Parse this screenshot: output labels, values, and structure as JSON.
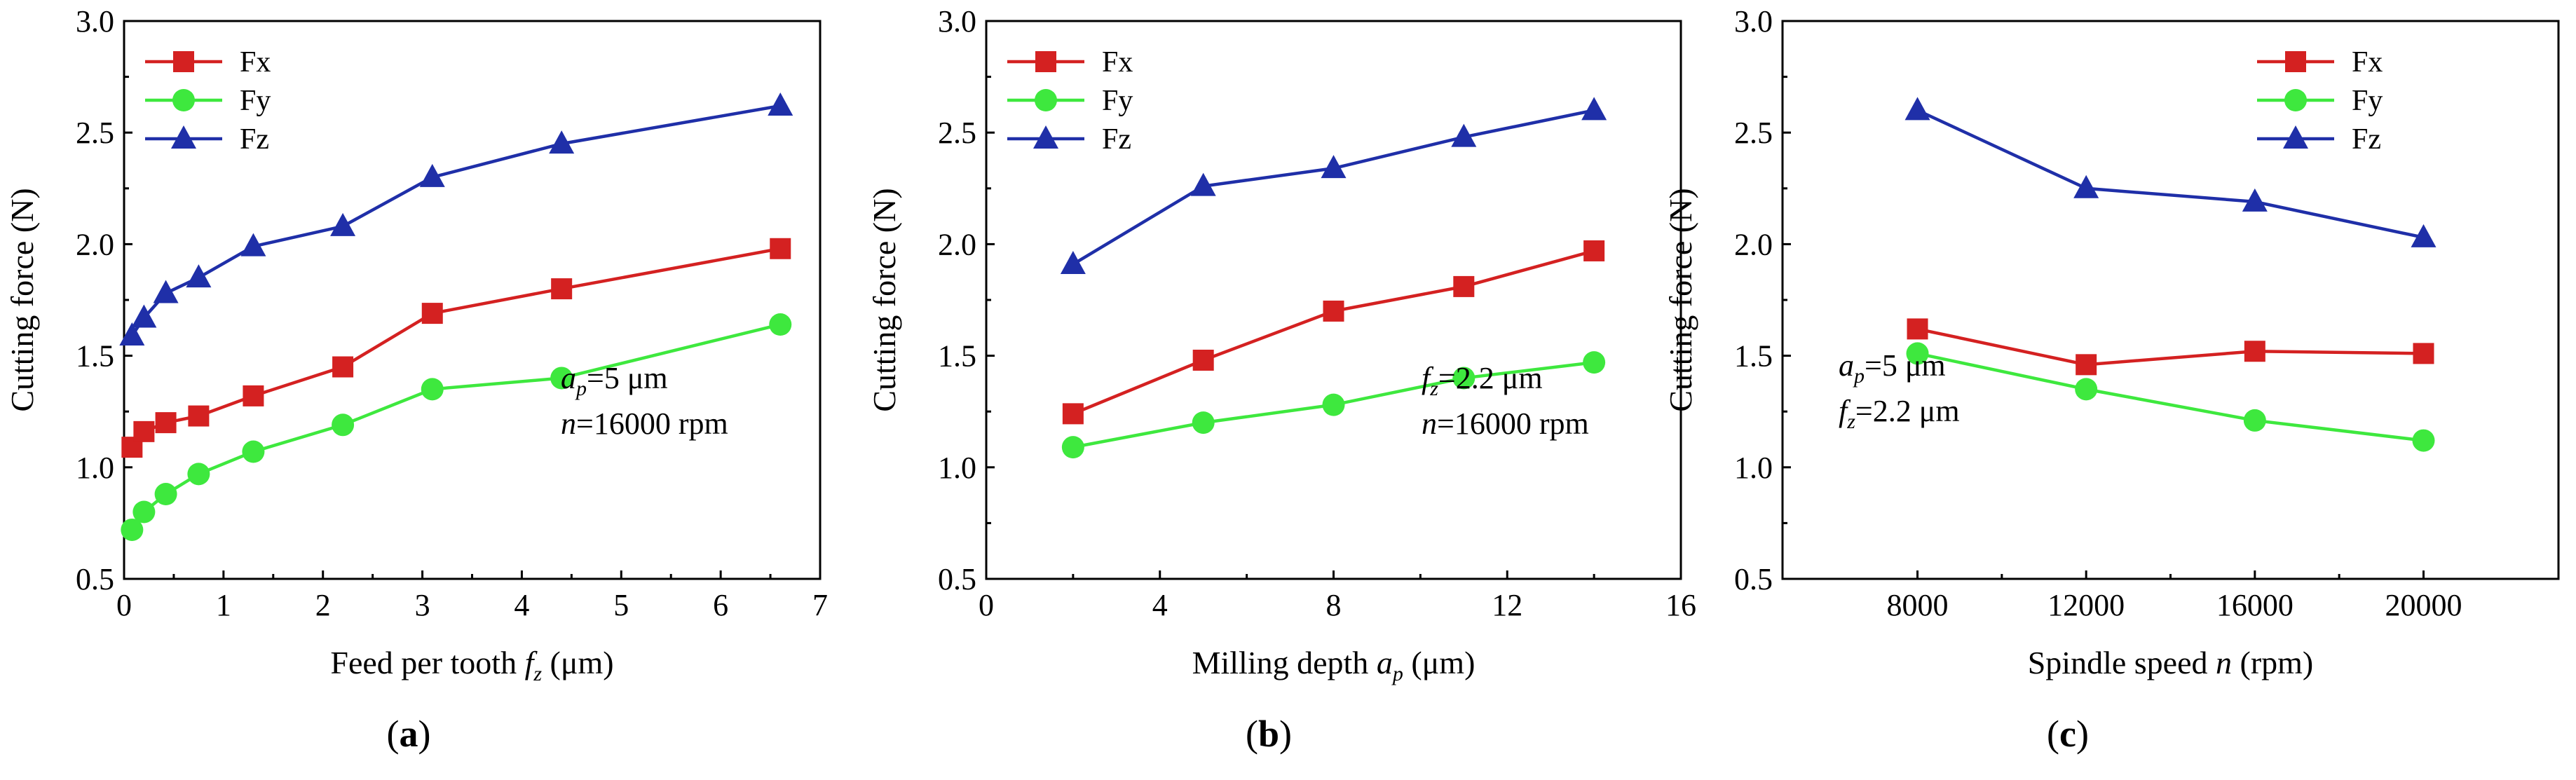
{
  "colors": {
    "Fx": "#d42121",
    "Fy": "#3ee83e",
    "Fz": "#1f2fa8"
  },
  "chart_data": [
    {
      "type": "line",
      "panel": "(a)",
      "panel_letter": "a",
      "xlabel_pre": "Feed per tooth ",
      "xlabel_var": "f",
      "xlabel_sub": "z",
      "xlabel_post": " (μm)",
      "ylabel": "Cutting force (N)",
      "xlim": [
        0,
        7
      ],
      "ylim": [
        0.5,
        3.0
      ],
      "xticks": [
        0,
        1,
        2,
        3,
        4,
        5,
        6,
        7
      ],
      "yticks": [
        "0.5",
        "1.0",
        "1.5",
        "2.0",
        "2.5",
        "3.0"
      ],
      "legend_position": "top-left",
      "annotation_position": "bottom-right",
      "annotations": [
        {
          "var": "a",
          "sub": "p",
          "text": "=5 μm"
        },
        {
          "var": "n",
          "sub": "",
          "text": "=16000 rpm"
        }
      ],
      "series": [
        {
          "name": "Fx",
          "marker": "square",
          "x": [
            0.08,
            0.2,
            0.42,
            0.75,
            1.3,
            2.2,
            3.1,
            4.4,
            6.6
          ],
          "y": [
            1.09,
            1.16,
            1.2,
            1.23,
            1.32,
            1.45,
            1.69,
            1.8,
            1.98
          ]
        },
        {
          "name": "Fy",
          "marker": "circle",
          "x": [
            0.08,
            0.2,
            0.42,
            0.75,
            1.3,
            2.2,
            3.1,
            4.4,
            6.6
          ],
          "y": [
            0.72,
            0.8,
            0.88,
            0.97,
            1.07,
            1.19,
            1.35,
            1.4,
            1.64
          ]
        },
        {
          "name": "Fz",
          "marker": "triangle",
          "x": [
            0.08,
            0.2,
            0.42,
            0.75,
            1.3,
            2.2,
            3.1,
            4.4,
            6.6
          ],
          "y": [
            1.59,
            1.67,
            1.78,
            1.85,
            1.99,
            2.08,
            2.3,
            2.45,
            2.62
          ]
        }
      ]
    },
    {
      "type": "line",
      "panel": "(b)",
      "panel_letter": "b",
      "xlabel_pre": "Milling depth ",
      "xlabel_var": "a",
      "xlabel_sub": "p",
      "xlabel_post": " (μm)",
      "ylabel": "Cutting force (N)",
      "xlim": [
        0,
        16
      ],
      "ylim": [
        0.5,
        3.0
      ],
      "xticks": [
        0,
        4,
        8,
        12,
        16
      ],
      "yticks": [
        "0.5",
        "1.0",
        "1.5",
        "2.0",
        "2.5",
        "3.0"
      ],
      "legend_position": "top-left",
      "annotation_position": "bottom-right",
      "annotations": [
        {
          "var": "f",
          "sub": "z",
          "text": "=2.2 μm"
        },
        {
          "var": "n",
          "sub": "",
          "text": "=16000 rpm"
        }
      ],
      "series": [
        {
          "name": "Fx",
          "marker": "square",
          "x": [
            2,
            5,
            8,
            11,
            14
          ],
          "y": [
            1.24,
            1.48,
            1.7,
            1.81,
            1.97
          ]
        },
        {
          "name": "Fy",
          "marker": "circle",
          "x": [
            2,
            5,
            8,
            11,
            14
          ],
          "y": [
            1.09,
            1.2,
            1.28,
            1.4,
            1.47
          ]
        },
        {
          "name": "Fz",
          "marker": "triangle",
          "x": [
            2,
            5,
            8,
            11,
            14
          ],
          "y": [
            1.91,
            2.26,
            2.34,
            2.48,
            2.6
          ]
        }
      ]
    },
    {
      "type": "line",
      "panel": "(c)",
      "panel_letter": "c",
      "xlabel_pre": "Spindle speed ",
      "xlabel_var": "n",
      "xlabel_sub": "",
      "xlabel_post": " (rpm)",
      "ylabel": "Cutting force (N)",
      "xlim": [
        4800,
        23200
      ],
      "ylim": [
        0.5,
        3.0
      ],
      "xticks": [
        8000,
        12000,
        16000,
        20000
      ],
      "yticks": [
        "0.5",
        "1.0",
        "1.5",
        "2.0",
        "2.5",
        "3.0"
      ],
      "legend_position": "top-right",
      "annotation_position": "bottom-left",
      "annotations": [
        {
          "var": "a",
          "sub": "p",
          "text": "=5 μm"
        },
        {
          "var": "f",
          "sub": "z",
          "text": "=2.2 μm"
        }
      ],
      "series": [
        {
          "name": "Fx",
          "marker": "square",
          "x": [
            8000,
            12000,
            16000,
            20000
          ],
          "y": [
            1.62,
            1.46,
            1.52,
            1.51
          ]
        },
        {
          "name": "Fy",
          "marker": "circle",
          "x": [
            8000,
            12000,
            16000,
            20000
          ],
          "y": [
            1.51,
            1.35,
            1.21,
            1.12
          ]
        },
        {
          "name": "Fz",
          "marker": "triangle",
          "x": [
            8000,
            12000,
            16000,
            20000
          ],
          "y": [
            2.6,
            2.25,
            2.19,
            2.03
          ]
        }
      ]
    }
  ]
}
